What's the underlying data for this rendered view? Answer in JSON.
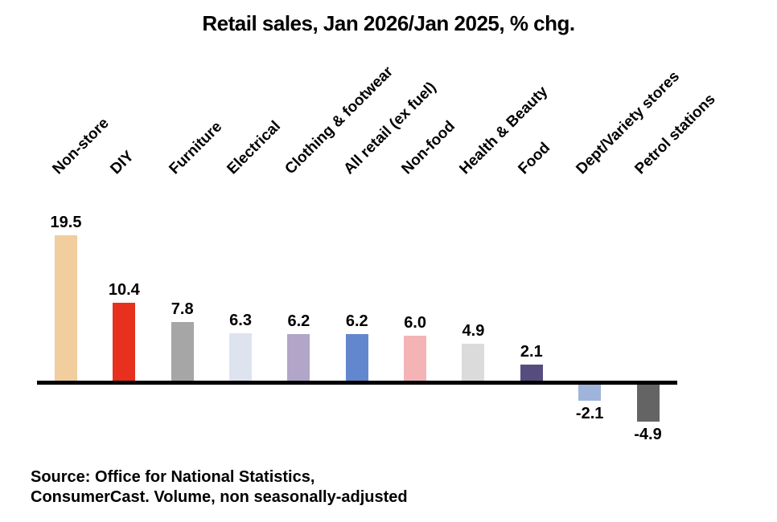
{
  "title": "Retail sales, Jan 2026/Jan 2025, % chg.",
  "source": {
    "line1": "Source: Office for National Statistics,",
    "line2": "ConsumerCast. Volume, non seasonally-adjusted"
  },
  "colors": {
    "text": "#000000",
    "axis": "#000000",
    "background": "#ffffff"
  },
  "chart_data": {
    "type": "bar",
    "title": "Retail sales, Jan 2026/Jan 2025, % chg.",
    "categories": [
      "Non-store",
      "DIY",
      "Furniture",
      "Electrical",
      "Clothing & footwear",
      "All retail (ex fuel)",
      "Non-food",
      "Health & Beauty",
      "Food",
      "Dept/Variety stores",
      "Petrol stations"
    ],
    "values": [
      19.5,
      10.4,
      7.8,
      6.3,
      6.2,
      6.2,
      6.0,
      4.9,
      2.1,
      -2.1,
      -4.9
    ],
    "value_labels": [
      "19.5",
      "10.4",
      "7.8",
      "6.3",
      "6.2",
      "6.2",
      "6.0",
      "4.9",
      "2.1",
      "-2.1",
      "-4.9"
    ],
    "bar_colors": [
      "#F2CD9E",
      "#E8301F",
      "#A6A6A6",
      "#DDE3EF",
      "#B1A5C8",
      "#6287CE",
      "#F4B4B6",
      "#DBDBDB",
      "#574C7E",
      "#9EB4DB",
      "#646464"
    ],
    "xlabel": "",
    "ylabel": "",
    "ylim": [
      -6,
      21
    ],
    "grid": false,
    "legend": false,
    "baseline": 0,
    "category_label_rotation_deg": 45,
    "value_labels_shown": true,
    "source_note": "Source: Office for National Statistics, ConsumerCast. Volume, non seasonally-adjusted"
  }
}
